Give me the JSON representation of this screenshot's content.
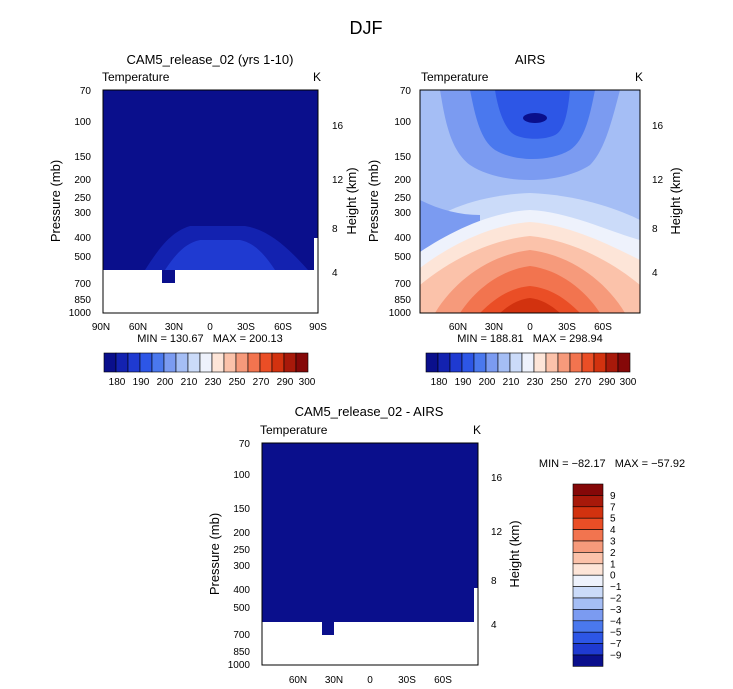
{
  "figure": {
    "title": "DJF"
  },
  "chart_data": [
    {
      "type": "heatmap",
      "title": "CAM5_release_02 (yrs 1-10)",
      "variable": "Temperature",
      "units": "K",
      "ylabel": "Pressure (mb)",
      "y2label": "Height (km)",
      "x_ticks": [
        "90N",
        "60N",
        "30N",
        "0",
        "30S",
        "60S",
        "90S"
      ],
      "y_ticks": [
        "70",
        "100",
        "150",
        "200",
        "250",
        "300",
        "400",
        "500",
        "700",
        "850",
        "1000"
      ],
      "y2_ticks": [
        "16",
        "12",
        "8",
        "4"
      ],
      "stats": "MIN = 130.67   MAX = 200.13",
      "colorbar": [
        "180",
        "190",
        "200",
        "210",
        "230",
        "250",
        "270",
        "290",
        "300"
      ],
      "colorbar_colors": [
        "#0a0f8c",
        "#1322b0",
        "#1f3ad1",
        "#2d56e6",
        "#4a78ee",
        "#7b9bf1",
        "#a5bef5",
        "#cbdbf9",
        "#eef2fc",
        "#fde5d8",
        "#fbc2aa",
        "#f69a7b",
        "#f2744f",
        "#ea4e26",
        "#d2320f",
        "#a8190a",
        "#850808"
      ]
    },
    {
      "type": "heatmap",
      "title": "AIRS",
      "variable": "Temperature",
      "units": "K",
      "ylabel": "Pressure (mb)",
      "y2label": "Height (km)",
      "x_ticks": [
        "60N",
        "30N",
        "0",
        "30S",
        "60S"
      ],
      "y_ticks": [
        "70",
        "100",
        "150",
        "200",
        "250",
        "300",
        "400",
        "500",
        "700",
        "850",
        "1000"
      ],
      "y2_ticks": [
        "16",
        "12",
        "8",
        "4"
      ],
      "stats": "MIN = 188.81   MAX = 298.94",
      "colorbar": [
        "180",
        "190",
        "200",
        "210",
        "230",
        "250",
        "270",
        "290",
        "300"
      ],
      "colorbar_colors": [
        "#0a0f8c",
        "#1322b0",
        "#1f3ad1",
        "#2d56e6",
        "#4a78ee",
        "#7b9bf1",
        "#a5bef5",
        "#cbdbf9",
        "#eef2fc",
        "#fde5d8",
        "#fbc2aa",
        "#f69a7b",
        "#f2744f",
        "#ea4e26",
        "#d2320f",
        "#a8190a",
        "#850808"
      ]
    },
    {
      "type": "heatmap",
      "title": "CAM5_release_02 - AIRS",
      "variable": "Temperature",
      "units": "K",
      "ylabel": "Pressure (mb)",
      "y2label": "Height (km)",
      "x_ticks": [
        "60N",
        "30N",
        "0",
        "30S",
        "60S"
      ],
      "y_ticks": [
        "70",
        "100",
        "150",
        "200",
        "250",
        "300",
        "400",
        "500",
        "700",
        "850",
        "1000"
      ],
      "y2_ticks": [
        "16",
        "12",
        "8",
        "4"
      ],
      "stats": "MIN = −82.17   MAX = −57.92",
      "colorbar": [
        "9",
        "7",
        "5",
        "4",
        "3",
        "2",
        "1",
        "0",
        "−1",
        "−2",
        "−3",
        "−4",
        "−5",
        "−7",
        "−9"
      ],
      "colorbar_colors": [
        "#850808",
        "#a8190a",
        "#d2320f",
        "#ea4e26",
        "#f2744f",
        "#f69a7b",
        "#fbc2aa",
        "#fde5d8",
        "#eef2fc",
        "#cbdbf9",
        "#a5bef5",
        "#7b9bf1",
        "#4a78ee",
        "#2d56e6",
        "#1f3ad1",
        "#0a0f8c"
      ]
    }
  ]
}
